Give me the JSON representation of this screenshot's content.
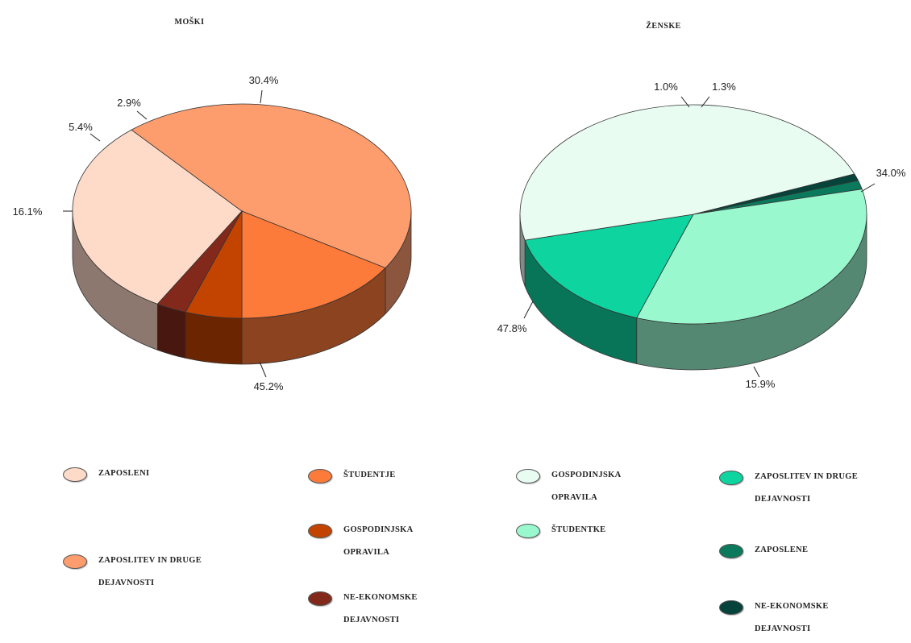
{
  "chart_data": [
    {
      "type": "pie",
      "title": "MOŠKI",
      "slices": [
        {
          "label": "ZAPOSLENI",
          "value": 30.4,
          "value_label": "30.4%",
          "color": "#fedac8"
        },
        {
          "label": "ZAPOSLITEV IN DRUGE DEJAVNOSTI",
          "value": 45.2,
          "value_label": "45.2%",
          "color": "#fd9d6e"
        },
        {
          "label": "ŠTUDENTJE",
          "value": 16.1,
          "value_label": "16.1%",
          "color": "#fc7a3a"
        },
        {
          "label": "GOSPODINJSKA OPRAVILA",
          "value": 5.4,
          "value_label": "5.4%",
          "color": "#c34400"
        },
        {
          "label": "NE-EKONOMSKE DEJAVNOSTI",
          "value": 2.9,
          "value_label": "2.9%",
          "color": "#82291b"
        }
      ]
    },
    {
      "type": "pie",
      "title": "ŽENSKE",
      "slices": [
        {
          "label": "ZAPOSLENE",
          "value": 1.3,
          "value_label": "1.3%",
          "color": "#0b7a5c"
        },
        {
          "label": "ŠTUDENTKE",
          "value": 34.0,
          "value_label": "34.0%",
          "color": "#9af8cf"
        },
        {
          "label": "ZAPOSLITEV IN DRUGE DEJAVNOSTI",
          "value": 15.9,
          "value_label": "15.9%",
          "color": "#0ed4a0"
        },
        {
          "label": "GOSPODINJSKA OPRAVILA",
          "value": 47.8,
          "value_label": "47.8%",
          "color": "#e9fcf2"
        },
        {
          "label": "NE-EKONOMSKE DEJAVNOSTI",
          "value": 1.0,
          "value_label": "1.0%",
          "color": "#06433a"
        }
      ]
    }
  ],
  "legend": [
    {
      "label_lines": [
        "ZAPOSLENI"
      ],
      "color": "#fedac8"
    },
    {
      "label_lines": [
        "ZAPOSLITEV IN DRUGE",
        "DEJAVNOSTI"
      ],
      "color": "#fd9d6e"
    },
    {
      "label_lines": [
        "ŠTUDENTJE"
      ],
      "color": "#fc7a3a"
    },
    {
      "label_lines": [
        "GOSPODINJSKA",
        "OPRAVILA"
      ],
      "color": "#c34400"
    },
    {
      "label_lines": [
        "NE-EKONOMSKE",
        "DEJAVNOSTI"
      ],
      "color": "#82291b"
    },
    {
      "label_lines": [
        "GOSPODINJSKA",
        "OPRAVILA"
      ],
      "color": "#e9fcf2"
    },
    {
      "label_lines": [
        "ŠTUDENTKE"
      ],
      "color": "#9af8cf"
    },
    {
      "label_lines": [
        "ZAPOSLITEV IN DRUGE",
        "DEJAVNOSTI"
      ],
      "color": "#0ed4a0"
    },
    {
      "label_lines": [
        "ZAPOSLENE"
      ],
      "color": "#0b7a5c"
    },
    {
      "label_lines": [
        "NE-EKONOMSKE",
        "DEJAVNOSTI"
      ],
      "color": "#06433a"
    }
  ]
}
